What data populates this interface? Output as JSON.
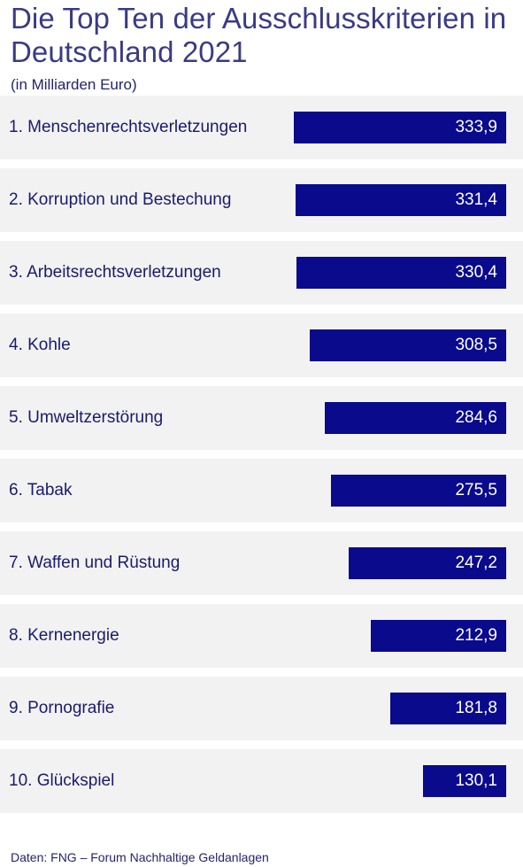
{
  "header": {
    "title": "Die Top Ten der Ausschlusskriterien in Deutschland 2021",
    "subtitle": "(in Milliarden Euro)"
  },
  "chart_data": {
    "type": "bar",
    "orientation": "horizontal",
    "title": "Die Top Ten der Ausschlusskriterien in Deutschland 2021",
    "subtitle": "(in Milliarden Euro)",
    "categories": [
      "1. Menschenrechtsverletzungen",
      "2. Korruption und Bestechung",
      "3. Arbeitsrechtsverletzungen",
      "4. Kohle",
      "5. Umweltzerstörung",
      "6. Tabak",
      "7. Waffen und Rüstung",
      "8. Kernenergie",
      "9. Pornografie",
      "10. Glückspiel"
    ],
    "values": [
      333.9,
      331.4,
      330.4,
      308.5,
      284.6,
      275.5,
      247.2,
      212.9,
      181.8,
      130.1
    ],
    "value_labels": [
      "333,9",
      "331,4",
      "330,4",
      "308,5",
      "284,6",
      "275,5",
      "247,2",
      "212,9",
      "181,8",
      "130,1"
    ],
    "bar_color": "#0a0a8c",
    "row_background": "#f2f2f2",
    "grid": false
  },
  "footer": {
    "source": "Daten: FNG – Forum Nachhaltige Geldanlagen"
  }
}
